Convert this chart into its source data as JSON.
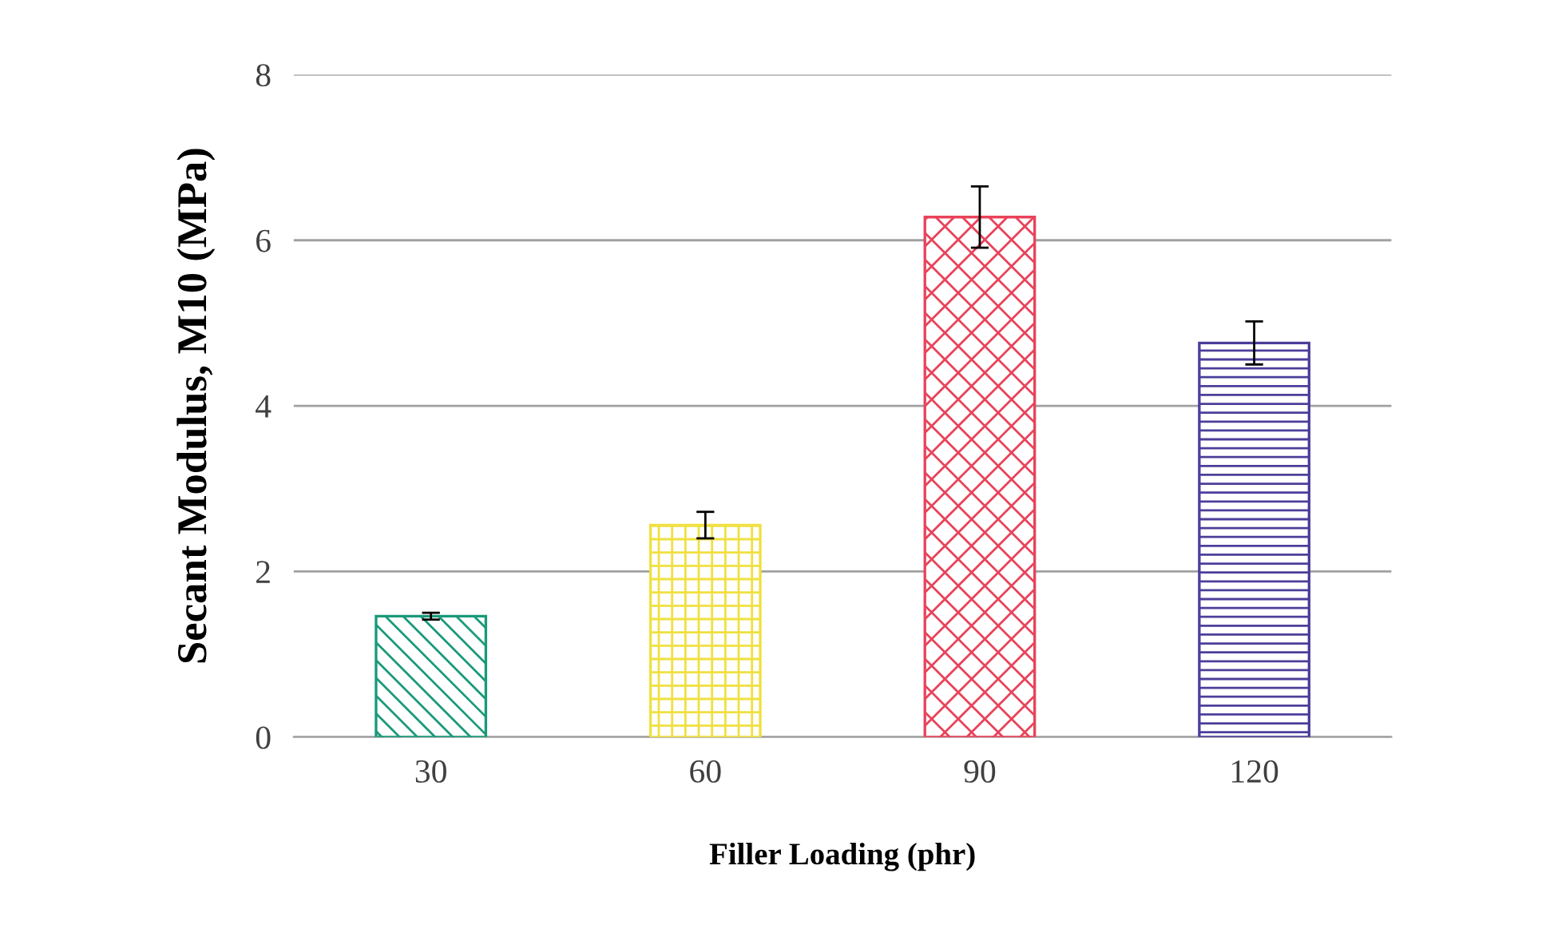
{
  "chart_data": {
    "type": "bar",
    "xlabel": "Filler Loading (phr)",
    "ylabel": "Secant Modulus, M10 (MPa)",
    "categories": [
      "30",
      "60",
      "90",
      "120"
    ],
    "values": [
      1.46,
      2.56,
      6.28,
      4.76
    ],
    "errors": [
      0.04,
      0.16,
      0.37,
      0.26
    ],
    "colors": [
      "#1a9a7a",
      "#f0e040",
      "#e8435a",
      "#4b3f9a"
    ],
    "ylim": [
      0,
      8
    ],
    "yticks": [
      0,
      2,
      4,
      6,
      8
    ],
    "grid": "y"
  }
}
